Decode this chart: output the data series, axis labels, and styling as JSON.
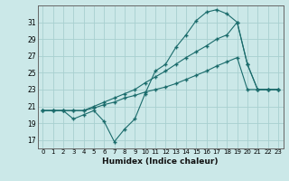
{
  "xlabel": "Humidex (Indice chaleur)",
  "bg_color": "#cbe8e8",
  "grid_color": "#a8d0d0",
  "line_color": "#1a6b6b",
  "marker": "+",
  "xlim": [
    -0.5,
    23.5
  ],
  "ylim": [
    16.0,
    33.0
  ],
  "yticks": [
    17,
    19,
    21,
    23,
    25,
    27,
    29,
    31
  ],
  "xticks": [
    0,
    1,
    2,
    3,
    4,
    5,
    6,
    7,
    8,
    9,
    10,
    11,
    12,
    13,
    14,
    15,
    16,
    17,
    18,
    19,
    20,
    21,
    22,
    23
  ],
  "curve1_x": [
    0,
    1,
    2,
    3,
    4,
    5,
    6,
    7,
    8,
    9,
    10,
    11,
    12,
    13,
    14,
    15,
    16,
    17,
    18,
    19,
    20,
    21,
    22,
    23
  ],
  "curve1_y": [
    20.5,
    20.5,
    20.5,
    19.5,
    20.0,
    20.5,
    19.2,
    16.8,
    18.3,
    19.5,
    22.5,
    25.2,
    26.0,
    28.0,
    29.5,
    31.2,
    32.2,
    32.5,
    32.0,
    31.0,
    26.0,
    23.0,
    23.0,
    23.0
  ],
  "curve2_x": [
    0,
    1,
    2,
    3,
    4,
    5,
    6,
    7,
    8,
    9,
    10,
    11,
    12,
    13,
    14,
    15,
    16,
    17,
    18,
    19,
    20,
    21,
    22,
    23
  ],
  "curve2_y": [
    20.5,
    20.5,
    20.5,
    20.5,
    20.5,
    21.0,
    21.5,
    22.0,
    22.5,
    23.0,
    23.8,
    24.5,
    25.2,
    26.0,
    26.8,
    27.5,
    28.2,
    29.0,
    29.5,
    31.0,
    26.0,
    23.0,
    23.0,
    23.0
  ],
  "curve3_x": [
    0,
    1,
    2,
    3,
    4,
    5,
    6,
    7,
    8,
    9,
    10,
    11,
    12,
    13,
    14,
    15,
    16,
    17,
    18,
    19,
    20,
    21,
    22,
    23
  ],
  "curve3_y": [
    20.5,
    20.5,
    20.5,
    20.5,
    20.5,
    20.8,
    21.2,
    21.5,
    22.0,
    22.3,
    22.7,
    23.0,
    23.3,
    23.7,
    24.2,
    24.7,
    25.2,
    25.8,
    26.3,
    26.8,
    23.0,
    23.0,
    23.0,
    23.0
  ]
}
